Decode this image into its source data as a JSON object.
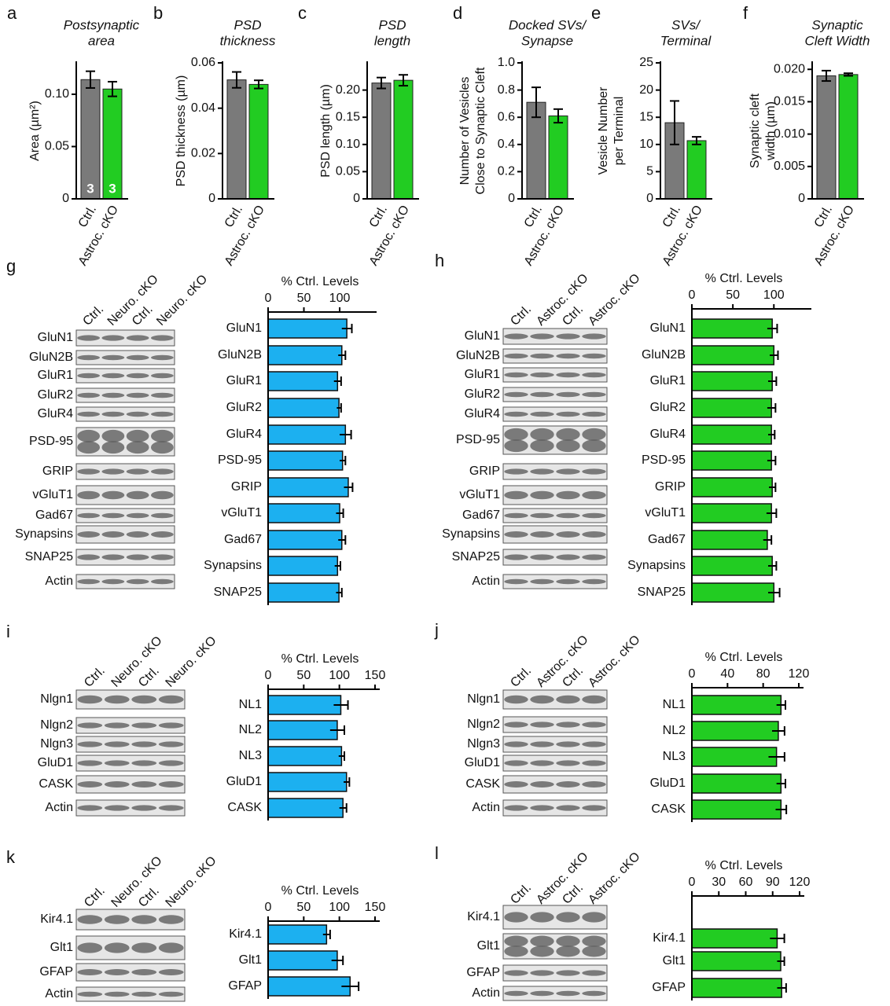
{
  "chart_data": [
    {
      "type": "bar",
      "letter": "a",
      "title": [
        "Postsynaptic",
        "area"
      ],
      "ylabel": [
        "Area (µm²)"
      ],
      "categories": [
        "Ctrl.",
        "Astroc. cKO"
      ],
      "values": [
        0.114,
        0.105
      ],
      "errors": [
        0.008,
        0.007
      ],
      "colors": [
        "#7a7a7a",
        "#22cc22"
      ],
      "n_labels": [
        "3",
        "3"
      ],
      "ylim": [
        0,
        0.13
      ],
      "yticks": [
        0,
        0.05,
        {
          "value": 0.1,
          "label": "0.10"
        }
      ]
    },
    {
      "type": "bar",
      "letter": "b",
      "title": [
        "PSD",
        "thickness"
      ],
      "ylabel": [
        "PSD thickness (µm)"
      ],
      "categories": [
        "Ctrl.",
        "Astroc. cKO"
      ],
      "values": [
        0.0525,
        0.0505
      ],
      "errors": [
        0.0035,
        0.0018
      ],
      "colors": [
        "#7a7a7a",
        "#22cc22"
      ],
      "ylim": [
        0,
        0.06
      ],
      "yticks": [
        0,
        0.02,
        0.04,
        0.06
      ]
    },
    {
      "type": "bar",
      "letter": "c",
      "title": [
        "PSD",
        "length"
      ],
      "ylabel": [
        "PSD length (µm)"
      ],
      "categories": [
        "Ctrl.",
        "Astroc. cKO"
      ],
      "values": [
        0.213,
        0.218
      ],
      "errors": [
        0.01,
        0.01
      ],
      "colors": [
        "#7a7a7a",
        "#22cc22"
      ],
      "ylim": [
        0,
        0.25
      ],
      "yticks": [
        0,
        0.05,
        {
          "value": 0.1,
          "label": "0.10"
        },
        0.15,
        {
          "value": 0.2,
          "label": "0.20"
        }
      ]
    },
    {
      "type": "bar",
      "letter": "d",
      "title": [
        "Docked SVs/",
        "Synapse"
      ],
      "ylabel": [
        "Number of Vesicles",
        "Close to Synaptic Cleft"
      ],
      "categories": [
        "Ctrl.",
        "Astroc. cKO"
      ],
      "values": [
        0.71,
        0.61
      ],
      "errors": [
        0.11,
        0.05
      ],
      "colors": [
        "#7a7a7a",
        "#22cc22"
      ],
      "ylim": [
        0,
        1.0
      ],
      "yticks": [
        0,
        0.2,
        0.4,
        0.6,
        0.8,
        {
          "value": 1,
          "label": "1.0"
        }
      ]
    },
    {
      "type": "bar",
      "letter": "e",
      "title": [
        "SVs/",
        "Terminal"
      ],
      "ylabel": [
        "Vesicle Number",
        "per Terminal"
      ],
      "categories": [
        "Ctrl.",
        "Astroc. cKO"
      ],
      "values": [
        14,
        10.7
      ],
      "errors": [
        4,
        0.7
      ],
      "colors": [
        "#7a7a7a",
        "#22cc22"
      ],
      "ylim": [
        0,
        25
      ],
      "yticks": [
        0,
        5,
        10,
        15,
        20,
        25
      ]
    },
    {
      "type": "bar",
      "letter": "f",
      "title": [
        "Synaptic",
        "Cleft Width"
      ],
      "ylabel": [
        "Synaptic cleft",
        "width (µm)"
      ],
      "categories": [
        "Ctrl.",
        "Astroc. cKO"
      ],
      "values": [
        0.019,
        0.0192
      ],
      "errors": [
        0.0008,
        0.0002
      ],
      "colors": [
        "#7a7a7a",
        "#22cc22"
      ],
      "ylim": [
        0,
        0.021
      ],
      "yticks": [
        0,
        0.005,
        {
          "value": 0.01,
          "label": "0.010"
        },
        0.015,
        {
          "value": 0.02,
          "label": "0.020"
        }
      ]
    },
    {
      "type": "hbar",
      "letter": "g",
      "xlabel": "% Ctrl. Levels",
      "color": "#1cb0f0",
      "categories": [
        "GluN1",
        "GluN2B",
        "GluR1",
        "GluR2",
        "GluR4",
        "PSD-95",
        "GRIP",
        "vGluT1",
        "Gad67",
        "Synapsins",
        "SNAP25"
      ],
      "values": [
        110,
        103,
        97,
        99,
        108,
        104,
        112,
        100,
        103,
        97,
        99
      ],
      "errors": [
        7,
        5,
        5,
        3,
        8,
        4,
        6,
        5,
        5,
        4,
        4
      ],
      "xlim": [
        0,
        145
      ],
      "xticks": [
        0,
        50,
        100
      ],
      "blot": {
        "columns": [
          "Ctrl.",
          "Neuro. cKO",
          "Ctrl.",
          "Neuro. cKO"
        ],
        "rows": [
          "GluN1",
          "GluN2B",
          "GluR1",
          "GluR2",
          "GluR4",
          "PSD-95",
          "GRIP",
          "vGluT1",
          "Gad67",
          "Synapsins",
          "SNAP25",
          "Actin"
        ]
      }
    },
    {
      "type": "hbar",
      "letter": "h",
      "xlabel": "% Ctrl. Levels",
      "color": "#22cc22",
      "categories": [
        "GluN1",
        "GluN2B",
        "GluR1",
        "GluR2",
        "GluR4",
        "PSD-95",
        "GRIP",
        "vGluT1",
        "Gad67",
        "Synapsins",
        "SNAP25"
      ],
      "values": [
        98,
        100,
        98,
        97,
        97,
        97,
        98,
        97,
        92,
        98,
        100
      ],
      "errors": [
        6,
        5,
        5,
        5,
        4,
        5,
        4,
        6,
        5,
        5,
        7
      ],
      "xlim": [
        0,
        140
      ],
      "xticks": [
        0,
        50,
        100
      ],
      "blot": {
        "columns": [
          "Ctrl.",
          "Astroc. cKO",
          "Ctrl.",
          "Astroc. cKO"
        ],
        "rows": [
          "GluN1",
          "GluN2B",
          "GluR1",
          "GluR2",
          "GluR4",
          "PSD-95",
          "GRIP",
          "vGluT1",
          "Gad67",
          "Synapsins",
          "SNAP25",
          "Actin"
        ]
      }
    },
    {
      "type": "hbar",
      "letter": "i",
      "xlabel": "% Ctrl. Levels",
      "color": "#1cb0f0",
      "categories": [
        "NL1",
        "NL2",
        "NL3",
        "GluD1",
        "CASK"
      ],
      "values": [
        102,
        97,
        103,
        110,
        105
      ],
      "errors": [
        10,
        10,
        4,
        4,
        5
      ],
      "xlim": [
        0,
        150
      ],
      "xticks": [
        0,
        50,
        100,
        150
      ],
      "blot": {
        "columns": [
          "Ctrl.",
          "Neuro. cKO",
          "Ctrl.",
          "Neuro. cKO"
        ],
        "rows": [
          "Nlgn1",
          "Nlgn2",
          "Nlgn3",
          "GluD1",
          "CASK",
          "Actin"
        ]
      }
    },
    {
      "type": "hbar",
      "letter": "j",
      "xlabel": "% Ctrl. Levels",
      "color": "#22cc22",
      "categories": [
        "NL1",
        "NL2",
        "NL3",
        "GluD1",
        "CASK"
      ],
      "values": [
        100,
        97,
        95,
        100,
        100
      ],
      "errors": [
        5,
        7,
        9,
        5,
        6
      ],
      "xlim": [
        0,
        120
      ],
      "xticks": [
        0,
        40,
        80,
        120
      ],
      "blot": {
        "columns": [
          "Ctrl.",
          "Astroc. cKO",
          "Ctrl.",
          "Astroc. cKO"
        ],
        "rows": [
          "Nlgn1",
          "Nlgn2",
          "Nlgn3",
          "GluD1",
          "CASK",
          "Actin"
        ]
      }
    },
    {
      "type": "hbar",
      "letter": "k",
      "xlabel": "% Ctrl. Levels",
      "color": "#1cb0f0",
      "categories": [
        "Kir4.1",
        "Glt1",
        "GFAP"
      ],
      "values": [
        82,
        97,
        115
      ],
      "errors": [
        5,
        8,
        12
      ],
      "xlim": [
        0,
        150
      ],
      "xticks": [
        0,
        50,
        100,
        150
      ],
      "blot": {
        "columns": [
          "Ctrl.",
          "Neuro. cKO",
          "Ctrl.",
          "Neuro. cKO"
        ],
        "rows": [
          "Kir4.1",
          "Glt1",
          "GFAP",
          "Actin"
        ]
      }
    },
    {
      "type": "hbar",
      "letter": "l",
      "xlabel": "% Ctrl. Levels",
      "color": "#22cc22",
      "categories": [
        "Kir4.1",
        "Glt1",
        "GFAP"
      ],
      "values": [
        95,
        99,
        100
      ],
      "errors": [
        8,
        4,
        5
      ],
      "xlim": [
        0,
        120
      ],
      "xticks": [
        0,
        30,
        60,
        90,
        120
      ],
      "blot": {
        "columns": [
          "Ctrl.",
          "Astroc. cKO",
          "Ctrl.",
          "Astroc. cKO"
        ],
        "rows": [
          "Kir4.1",
          "Glt1",
          "GFAP",
          "Actin"
        ]
      }
    }
  ]
}
